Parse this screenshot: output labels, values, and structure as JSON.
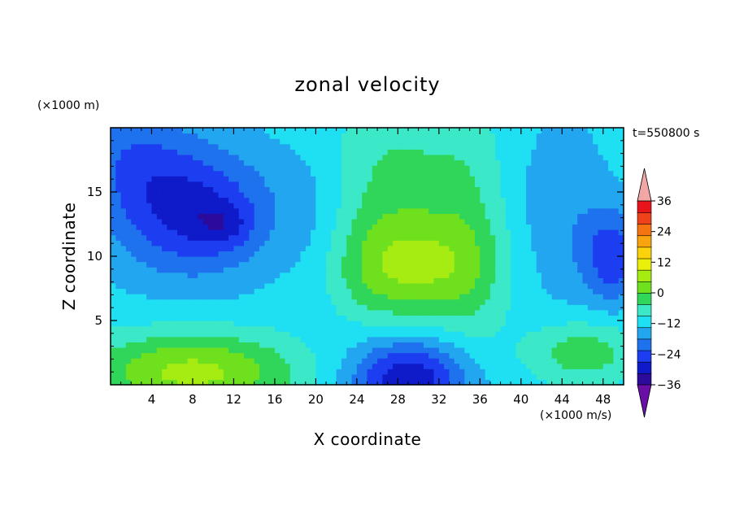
{
  "chart_data": {
    "type": "heatmap",
    "title": "zonal velocity",
    "xlabel": "X coordinate",
    "ylabel": "Z coordinate",
    "x_unit": "(×1000 m/s)",
    "y_unit": "(×1000 m)",
    "time_label": "t=550800 s",
    "xlim": [
      0,
      50
    ],
    "ylim": [
      0,
      20
    ],
    "x_ticks": [
      4,
      8,
      12,
      16,
      20,
      24,
      28,
      32,
      36,
      40,
      44,
      48
    ],
    "x_tick_labels": [
      "4",
      "8",
      "12",
      "16",
      "20",
      "24",
      "28",
      "32",
      "36",
      "40",
      "44",
      "48"
    ],
    "y_ticks": [
      5,
      10,
      15
    ],
    "y_tick_labels": [
      "5",
      "10",
      "15"
    ],
    "colorbar": {
      "min": -42,
      "max": 42,
      "step": 6,
      "labels": [
        "36",
        "24",
        "12",
        "0",
        "−12",
        "−24",
        "−36"
      ],
      "label_values": [
        36,
        24,
        12,
        0,
        -12,
        -24,
        -36
      ],
      "colors": [
        "#6a0ea8",
        "#2c0a9c",
        "#0f1ac9",
        "#1c3ef0",
        "#1e72ee",
        "#22a6f0",
        "#1fe0f2",
        "#3be8c8",
        "#30d65a",
        "#6ee01e",
        "#a6ec12",
        "#eaf00c",
        "#fbd20c",
        "#f8a40e",
        "#f57412",
        "#f0421a",
        "#e8141c",
        "#f2a7a7"
      ]
    },
    "field": [
      {
        "x": 8,
        "z": 13.5,
        "value": -22,
        "sx": 5.5,
        "sz": 3.5
      },
      {
        "x": 11,
        "z": 12.5,
        "value": -8,
        "sx": 2.0,
        "sz": 1.2
      },
      {
        "x": 2,
        "z": 18,
        "value": -10,
        "sx": 4.0,
        "sz": 3.0
      },
      {
        "x": 29,
        "z": 9,
        "value": 20,
        "sx": 5.5,
        "sz": 3.0
      },
      {
        "x": 28,
        "z": 16,
        "value": 11,
        "sx": 5.0,
        "sz": 5.0
      },
      {
        "x": 35,
        "z": 12,
        "value": 7,
        "sx": 2.5,
        "sz": 7.0
      },
      {
        "x": 8,
        "z": 1,
        "value": 24,
        "sx": 7.5,
        "sz": 2.2
      },
      {
        "x": 46,
        "z": 2.5,
        "value": 14,
        "sx": 4.0,
        "sz": 1.8
      },
      {
        "x": 29,
        "z": 0.5,
        "value": -26,
        "sx": 4.0,
        "sz": 2.2
      },
      {
        "x": 49,
        "z": 10,
        "value": -18,
        "sx": 2.0,
        "sz": 2.5
      },
      {
        "x": 20,
        "z": 12,
        "value": -5,
        "sx": 2.5,
        "sz": 5.0
      },
      {
        "x": 44,
        "z": 13,
        "value": -7,
        "sx": 3.0,
        "sz": 5.0
      }
    ]
  }
}
